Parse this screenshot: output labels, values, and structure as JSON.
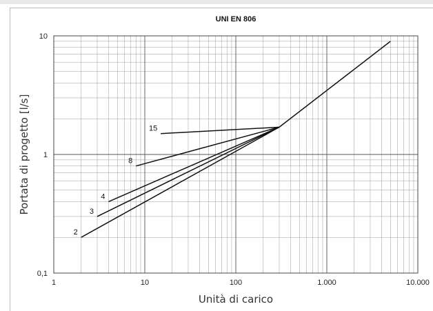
{
  "chart_data": {
    "type": "line",
    "title": "UNI EN 806",
    "xlabel": "Unità di carico",
    "ylabel": "Portata di progetto [l/s]",
    "xscale": "log",
    "yscale": "log",
    "xlim": [
      1,
      10000
    ],
    "ylim": [
      0.1,
      10
    ],
    "grid": true,
    "x_tick_labels": [
      "1",
      "10",
      "100",
      "1.000",
      "10.000"
    ],
    "y_tick_labels": [
      "0,1",
      "1",
      "10"
    ],
    "series": [
      {
        "name": "2",
        "points": [
          [
            2,
            0.2
          ],
          [
            300,
            1.7
          ]
        ]
      },
      {
        "name": "3",
        "points": [
          [
            3,
            0.3
          ],
          [
            300,
            1.7
          ]
        ]
      },
      {
        "name": "4",
        "points": [
          [
            4,
            0.4
          ],
          [
            300,
            1.7
          ]
        ]
      },
      {
        "name": "8",
        "points": [
          [
            8,
            0.8
          ],
          [
            300,
            1.7
          ]
        ]
      },
      {
        "name": "15",
        "points": [
          [
            15,
            1.5
          ],
          [
            300,
            1.7
          ]
        ]
      },
      {
        "points": [
          [
            300,
            1.7
          ],
          [
            5000,
            9
          ]
        ]
      }
    ],
    "line_color": "#111111",
    "grid_color": "#9a9a9a"
  }
}
